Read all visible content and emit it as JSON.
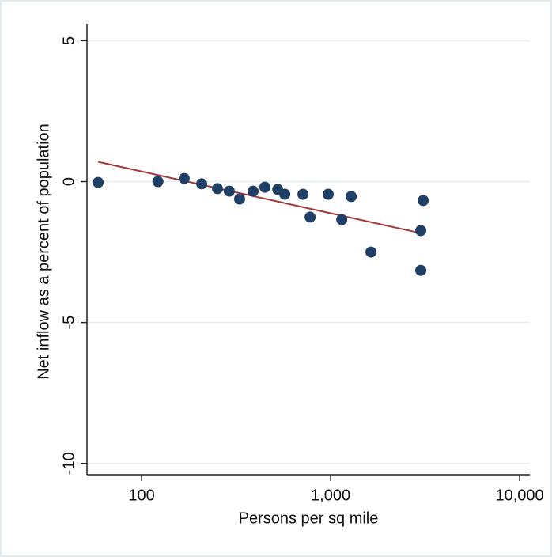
{
  "chart_data": {
    "type": "scatter",
    "x_label": "Persons per sq mile",
    "y_label": "Net inflow as a percent of population",
    "x_log": true,
    "xlim": [
      51.4,
      11330
    ],
    "xticks": [
      100,
      {
        "value": 1000,
        "label": "1,000"
      },
      {
        "value": 10000,
        "label": "10,000"
      }
    ],
    "ylim": [
      -10.4,
      5.6
    ],
    "yticks": [
      -10,
      -5,
      0,
      5
    ],
    "grid": true,
    "points": {
      "color": "#1f3f66",
      "x": [
        58.9,
        122,
        168,
        208,
        252,
        291,
        330,
        389,
        449,
        525,
        572,
        714,
        779,
        971,
        1145,
        1285,
        1635,
        2999,
        2999,
        3090
      ],
      "y": [
        -0.03,
        0,
        0.11,
        -0.08,
        -0.25,
        -0.34,
        -0.62,
        -0.34,
        -0.2,
        -0.28,
        -0.45,
        -0.45,
        -1.26,
        -0.45,
        -1.35,
        -0.53,
        -2.5,
        -3.15,
        -1.74,
        -0.67
      ]
    },
    "fit_line": {
      "color": "#a33a3a",
      "x": [
        58.9,
        2999
      ],
      "y": [
        0.7,
        -1.83
      ]
    }
  }
}
